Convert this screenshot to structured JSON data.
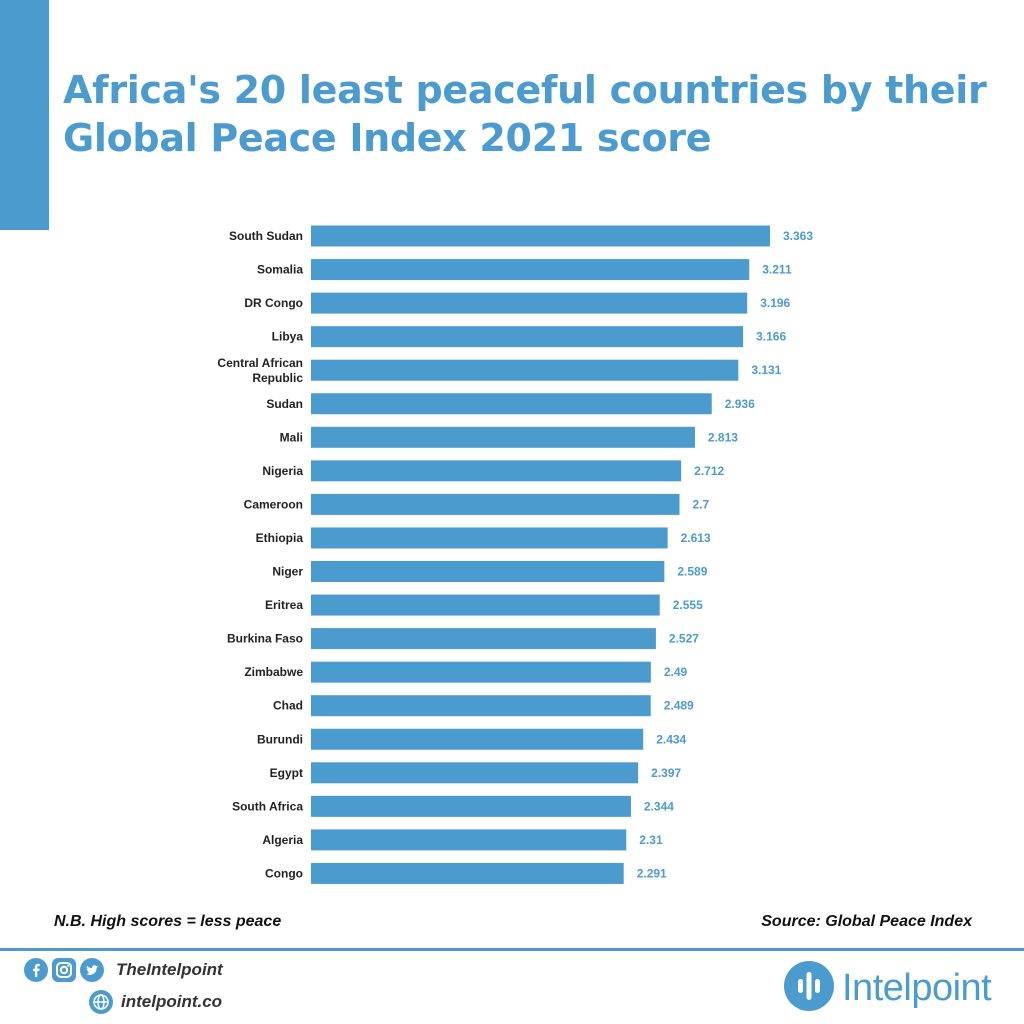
{
  "title": "Africa's 20 least peaceful countries by their Global Peace Index 2021 score",
  "colors": {
    "accent": "#4b9bce",
    "text": "#222222"
  },
  "chart_data": {
    "type": "bar",
    "orientation": "horizontal",
    "title": "Africa's 20 least peaceful countries by their Global Peace Index 2021 score",
    "xlabel": "",
    "ylabel": "",
    "categories": [
      "South Sudan",
      "Somalia",
      "DR Congo",
      "Libya",
      "Central African Republic",
      "Sudan",
      "Mali",
      "Nigeria",
      "Cameroon",
      "Ethiopia",
      "Niger",
      "Eritrea",
      "Burkina Faso",
      "Zimbabwe",
      "Chad",
      "Burundi",
      "Egypt",
      "South Africa",
      "Algeria",
      "Congo"
    ],
    "values": [
      3.363,
      3.211,
      3.196,
      3.166,
      3.131,
      2.936,
      2.813,
      2.712,
      2.7,
      2.613,
      2.589,
      2.555,
      2.527,
      2.49,
      2.489,
      2.434,
      2.397,
      2.344,
      2.31,
      2.291
    ],
    "value_labels": [
      "3.363",
      "3.211",
      "3.196",
      "3.166",
      "3.131",
      "2.936",
      "2.813",
      "2.712",
      "2.7",
      "2.613",
      "2.589",
      "2.555",
      "2.527",
      "2.49",
      "2.489",
      "2.434",
      "2.397",
      "2.344",
      "2.31",
      "2.291"
    ],
    "xlim": [
      0,
      3.363
    ],
    "grid": false,
    "legend": "none"
  },
  "notes": {
    "left": "N.B. High scores = less peace",
    "right": "Source: Global Peace Index"
  },
  "footer": {
    "social_icons": [
      "facebook-icon",
      "instagram-icon",
      "twitter-icon"
    ],
    "handle": "TheIntelpoint",
    "website": "intelpoint.co",
    "brand_name": "Intelpoint"
  }
}
